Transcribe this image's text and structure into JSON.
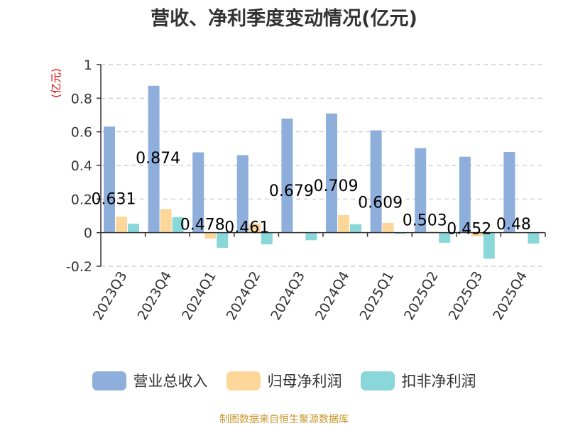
{
  "chart_data": {
    "type": "bar",
    "title": "营收、净利季度变动情况(亿元)",
    "unit_label": "(亿元)",
    "categories": [
      "2023Q3",
      "2023Q4",
      "2024Q1",
      "2024Q2",
      "2024Q3",
      "2024Q4",
      "2025Q1",
      "2025Q2",
      "2025Q3",
      "2025Q4"
    ],
    "series": [
      {
        "name": "营业总收入",
        "color": "#8eaedc",
        "values": [
          0.631,
          0.874,
          0.478,
          0.461,
          0.679,
          0.709,
          0.609,
          0.503,
          0.452,
          0.48
        ]
      },
      {
        "name": "归母净利润",
        "color": "#fdd699",
        "values": [
          0.095,
          0.14,
          -0.035,
          0.055,
          0.004,
          0.105,
          0.058,
          0.006,
          -0.022,
          0.003
        ]
      },
      {
        "name": "扣非净利润",
        "color": "#8ad7d9",
        "values": [
          0.053,
          0.092,
          -0.09,
          -0.07,
          -0.045,
          0.05,
          -0.008,
          -0.06,
          -0.155,
          -0.065
        ]
      }
    ],
    "data_labels": [
      "0.631",
      "0.874",
      "0.478",
      "0.461",
      "0.679",
      "0.709",
      "0.609",
      "0.503",
      "0.452",
      "0.48"
    ],
    "yticks": [
      "1",
      "0.8",
      "0.6",
      "0.4",
      "0.2",
      "0",
      "-0.2"
    ],
    "ylim": [
      -0.2,
      1
    ],
    "grid": true,
    "legend_position": "bottom"
  },
  "source_note": "制图数据来自恒生聚源数据库"
}
